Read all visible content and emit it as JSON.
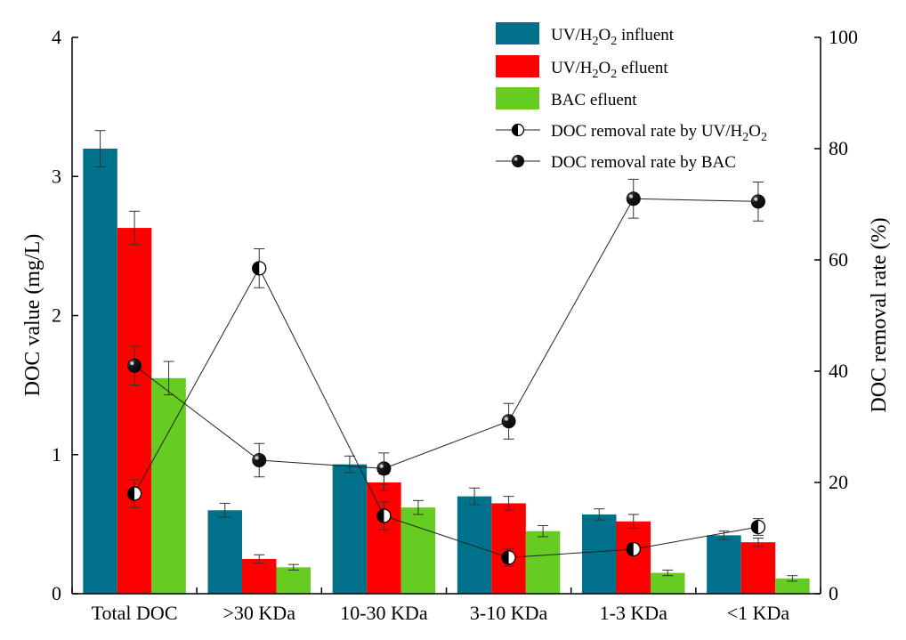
{
  "chart_data": {
    "type": "bar",
    "title": "",
    "xlabel": "",
    "ylabel": "DOC value (mg/L)",
    "y2label": "DOC removal rate (%)",
    "ylim": [
      0,
      4
    ],
    "y2lim": [
      0,
      100
    ],
    "yticks": [
      "0",
      "1",
      "2",
      "3",
      "4"
    ],
    "y2ticks": [
      "0",
      "20",
      "40",
      "60",
      "80",
      "100"
    ],
    "categories": [
      "Total DOC",
      ">30 KDa",
      "10-30 KDa",
      "3-10 KDa",
      "1-3 KDa",
      "<1 KDa"
    ],
    "bar_series": [
      {
        "name": "UV/H2O2 influent",
        "legend_parts": [
          "UV/H",
          "2",
          "O",
          "2",
          " influent"
        ],
        "color": "#00718a",
        "values": [
          3.2,
          0.6,
          0.93,
          0.7,
          0.57,
          0.42
        ],
        "errors": [
          0.13,
          0.05,
          0.06,
          0.06,
          0.04,
          0.03
        ]
      },
      {
        "name": "UV/H2O2 efluent",
        "legend_parts": [
          "UV/H",
          "2",
          "O",
          "2",
          " efluent"
        ],
        "color": "#ff0000",
        "values": [
          2.63,
          0.25,
          0.8,
          0.65,
          0.52,
          0.37
        ],
        "errors": [
          0.12,
          0.03,
          0.06,
          0.05,
          0.05,
          0.03
        ]
      },
      {
        "name": "BAC efluent",
        "legend_parts": [
          "BAC efluent"
        ],
        "color": "#66cc22",
        "values": [
          1.55,
          0.19,
          0.62,
          0.45,
          0.15,
          0.11
        ],
        "errors": [
          0.12,
          0.02,
          0.05,
          0.04,
          0.02,
          0.02
        ]
      }
    ],
    "line_series": [
      {
        "name": "DOC removal rate by UV/H2O2",
        "legend_parts": [
          "DOC removal rate by UV/H",
          "2",
          "O",
          "2"
        ],
        "marker": "half",
        "values": [
          18,
          58.5,
          14,
          6.5,
          8,
          12
        ],
        "errors": [
          2.5,
          3.5,
          2.5,
          1.5,
          1.0,
          1.5
        ]
      },
      {
        "name": "DOC removal rate by BAC",
        "legend_parts": [
          "DOC removal rate by BAC"
        ],
        "marker": "solid",
        "values": [
          41,
          24,
          22.5,
          31,
          71,
          70.5
        ],
        "errors": [
          3.5,
          3.0,
          2.8,
          3.2,
          3.5,
          3.5
        ]
      }
    ],
    "legend_position": "top-right"
  }
}
